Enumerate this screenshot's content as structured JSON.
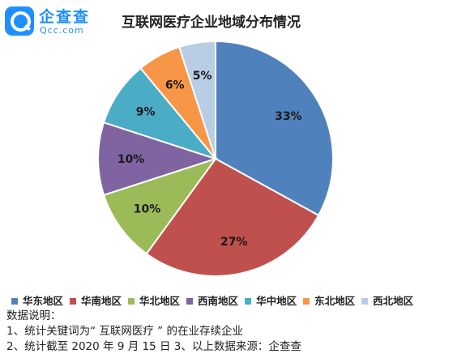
{
  "logo": {
    "name": "企查查",
    "domain": "Qcc.com"
  },
  "chart_data": {
    "type": "pie",
    "title": "互联网医疗企业地域分布情况",
    "categories": [
      "华东地区",
      "华南地区",
      "华北地区",
      "西南地区",
      "华中地区",
      "东北地区",
      "西北地区"
    ],
    "values": [
      33,
      27,
      10,
      10,
      9,
      6,
      5
    ],
    "labels": [
      "33%",
      "27%",
      "10%",
      "10%",
      "9%",
      "6%",
      "5%"
    ],
    "colors": [
      "#4f81bd",
      "#c0504d",
      "#9bbb59",
      "#8064a2",
      "#4bacc6",
      "#f79646",
      "#b9cde5"
    ],
    "start_angle": "12 o'clock",
    "direction": "clockwise",
    "legend_position": "bottom"
  },
  "notes": {
    "heading": "数据说明：",
    "line1": "1、统计关键词为“ 互联网医疗 ” 的在业存续企业",
    "line2": "2、统计截至 2020 年 9 月 15 日  3、以上数据来源：企查查"
  }
}
